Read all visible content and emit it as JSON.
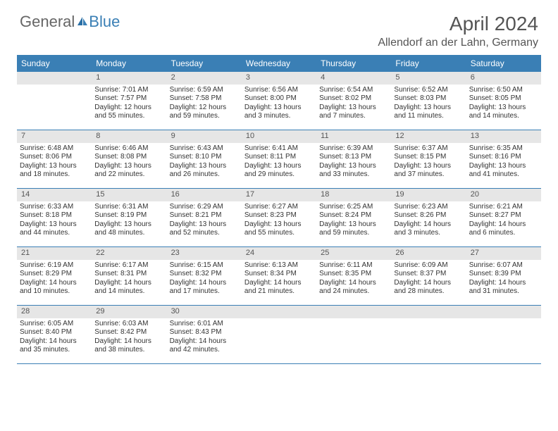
{
  "logo": {
    "text1": "General",
    "text2": "Blue"
  },
  "title": "April 2024",
  "location": "Allendorf an der Lahn, Germany",
  "day_headers": [
    "Sunday",
    "Monday",
    "Tuesday",
    "Wednesday",
    "Thursday",
    "Friday",
    "Saturday"
  ],
  "colors": {
    "header_bg": "#3a7fb5",
    "header_text": "#ffffff",
    "daynum_bg": "#e6e6e6",
    "text": "#333333",
    "title": "#555555",
    "row_border": "#3a7fb5"
  },
  "weeks": [
    [
      {
        "n": "",
        "sr": "",
        "ss": "",
        "dl": ""
      },
      {
        "n": "1",
        "sr": "Sunrise: 7:01 AM",
        "ss": "Sunset: 7:57 PM",
        "dl": "Daylight: 12 hours and 55 minutes."
      },
      {
        "n": "2",
        "sr": "Sunrise: 6:59 AM",
        "ss": "Sunset: 7:58 PM",
        "dl": "Daylight: 12 hours and 59 minutes."
      },
      {
        "n": "3",
        "sr": "Sunrise: 6:56 AM",
        "ss": "Sunset: 8:00 PM",
        "dl": "Daylight: 13 hours and 3 minutes."
      },
      {
        "n": "4",
        "sr": "Sunrise: 6:54 AM",
        "ss": "Sunset: 8:02 PM",
        "dl": "Daylight: 13 hours and 7 minutes."
      },
      {
        "n": "5",
        "sr": "Sunrise: 6:52 AM",
        "ss": "Sunset: 8:03 PM",
        "dl": "Daylight: 13 hours and 11 minutes."
      },
      {
        "n": "6",
        "sr": "Sunrise: 6:50 AM",
        "ss": "Sunset: 8:05 PM",
        "dl": "Daylight: 13 hours and 14 minutes."
      }
    ],
    [
      {
        "n": "7",
        "sr": "Sunrise: 6:48 AM",
        "ss": "Sunset: 8:06 PM",
        "dl": "Daylight: 13 hours and 18 minutes."
      },
      {
        "n": "8",
        "sr": "Sunrise: 6:46 AM",
        "ss": "Sunset: 8:08 PM",
        "dl": "Daylight: 13 hours and 22 minutes."
      },
      {
        "n": "9",
        "sr": "Sunrise: 6:43 AM",
        "ss": "Sunset: 8:10 PM",
        "dl": "Daylight: 13 hours and 26 minutes."
      },
      {
        "n": "10",
        "sr": "Sunrise: 6:41 AM",
        "ss": "Sunset: 8:11 PM",
        "dl": "Daylight: 13 hours and 29 minutes."
      },
      {
        "n": "11",
        "sr": "Sunrise: 6:39 AM",
        "ss": "Sunset: 8:13 PM",
        "dl": "Daylight: 13 hours and 33 minutes."
      },
      {
        "n": "12",
        "sr": "Sunrise: 6:37 AM",
        "ss": "Sunset: 8:15 PM",
        "dl": "Daylight: 13 hours and 37 minutes."
      },
      {
        "n": "13",
        "sr": "Sunrise: 6:35 AM",
        "ss": "Sunset: 8:16 PM",
        "dl": "Daylight: 13 hours and 41 minutes."
      }
    ],
    [
      {
        "n": "14",
        "sr": "Sunrise: 6:33 AM",
        "ss": "Sunset: 8:18 PM",
        "dl": "Daylight: 13 hours and 44 minutes."
      },
      {
        "n": "15",
        "sr": "Sunrise: 6:31 AM",
        "ss": "Sunset: 8:19 PM",
        "dl": "Daylight: 13 hours and 48 minutes."
      },
      {
        "n": "16",
        "sr": "Sunrise: 6:29 AM",
        "ss": "Sunset: 8:21 PM",
        "dl": "Daylight: 13 hours and 52 minutes."
      },
      {
        "n": "17",
        "sr": "Sunrise: 6:27 AM",
        "ss": "Sunset: 8:23 PM",
        "dl": "Daylight: 13 hours and 55 minutes."
      },
      {
        "n": "18",
        "sr": "Sunrise: 6:25 AM",
        "ss": "Sunset: 8:24 PM",
        "dl": "Daylight: 13 hours and 59 minutes."
      },
      {
        "n": "19",
        "sr": "Sunrise: 6:23 AM",
        "ss": "Sunset: 8:26 PM",
        "dl": "Daylight: 14 hours and 3 minutes."
      },
      {
        "n": "20",
        "sr": "Sunrise: 6:21 AM",
        "ss": "Sunset: 8:27 PM",
        "dl": "Daylight: 14 hours and 6 minutes."
      }
    ],
    [
      {
        "n": "21",
        "sr": "Sunrise: 6:19 AM",
        "ss": "Sunset: 8:29 PM",
        "dl": "Daylight: 14 hours and 10 minutes."
      },
      {
        "n": "22",
        "sr": "Sunrise: 6:17 AM",
        "ss": "Sunset: 8:31 PM",
        "dl": "Daylight: 14 hours and 14 minutes."
      },
      {
        "n": "23",
        "sr": "Sunrise: 6:15 AM",
        "ss": "Sunset: 8:32 PM",
        "dl": "Daylight: 14 hours and 17 minutes."
      },
      {
        "n": "24",
        "sr": "Sunrise: 6:13 AM",
        "ss": "Sunset: 8:34 PM",
        "dl": "Daylight: 14 hours and 21 minutes."
      },
      {
        "n": "25",
        "sr": "Sunrise: 6:11 AM",
        "ss": "Sunset: 8:35 PM",
        "dl": "Daylight: 14 hours and 24 minutes."
      },
      {
        "n": "26",
        "sr": "Sunrise: 6:09 AM",
        "ss": "Sunset: 8:37 PM",
        "dl": "Daylight: 14 hours and 28 minutes."
      },
      {
        "n": "27",
        "sr": "Sunrise: 6:07 AM",
        "ss": "Sunset: 8:39 PM",
        "dl": "Daylight: 14 hours and 31 minutes."
      }
    ],
    [
      {
        "n": "28",
        "sr": "Sunrise: 6:05 AM",
        "ss": "Sunset: 8:40 PM",
        "dl": "Daylight: 14 hours and 35 minutes."
      },
      {
        "n": "29",
        "sr": "Sunrise: 6:03 AM",
        "ss": "Sunset: 8:42 PM",
        "dl": "Daylight: 14 hours and 38 minutes."
      },
      {
        "n": "30",
        "sr": "Sunrise: 6:01 AM",
        "ss": "Sunset: 8:43 PM",
        "dl": "Daylight: 14 hours and 42 minutes."
      },
      {
        "n": "",
        "sr": "",
        "ss": "",
        "dl": ""
      },
      {
        "n": "",
        "sr": "",
        "ss": "",
        "dl": ""
      },
      {
        "n": "",
        "sr": "",
        "ss": "",
        "dl": ""
      },
      {
        "n": "",
        "sr": "",
        "ss": "",
        "dl": ""
      }
    ]
  ]
}
